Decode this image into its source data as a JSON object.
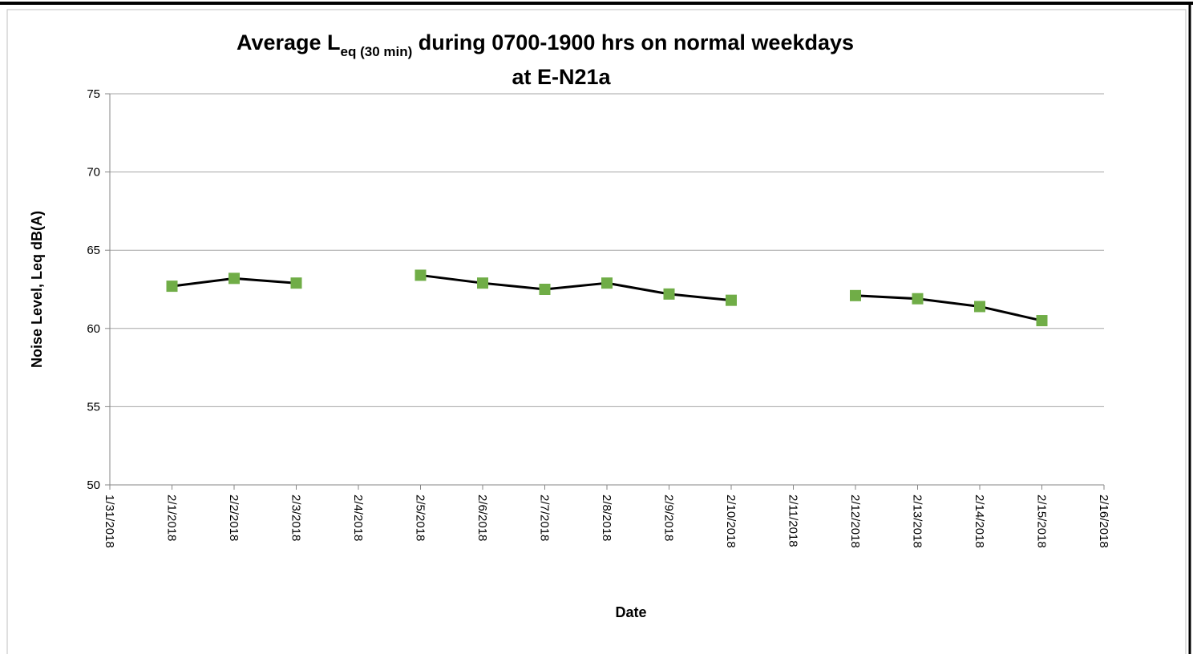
{
  "chart_data": {
    "type": "line",
    "title": {
      "main": "Average L",
      "subscript": "eq (30 min)",
      "rest": " during 0700-1900 hrs on normal weekdays",
      "line2": "at E-N21a"
    },
    "x_label": "Date",
    "y_label": "Noise Level, Leq dB(A)",
    "categories": [
      "1/31/2018",
      "2/1/2018",
      "2/2/2018",
      "2/3/2018",
      "2/4/2018",
      "2/5/2018",
      "2/6/2018",
      "2/7/2018",
      "2/8/2018",
      "2/9/2018",
      "2/10/2018",
      "2/11/2018",
      "2/12/2018",
      "2/13/2018",
      "2/14/2018",
      "2/15/2018",
      "2/16/2018"
    ],
    "series": [
      {
        "color": "#70ad47",
        "line_color": "#000000",
        "values": [
          null,
          62.7,
          63.2,
          62.9,
          null,
          63.4,
          62.9,
          62.5,
          62.9,
          62.2,
          61.8,
          null,
          62.1,
          61.9,
          61.4,
          60.5,
          null
        ]
      }
    ],
    "ylim": [
      50,
      75
    ],
    "yticks": [
      50,
      55,
      60,
      65,
      70,
      75
    ],
    "grid": true
  }
}
